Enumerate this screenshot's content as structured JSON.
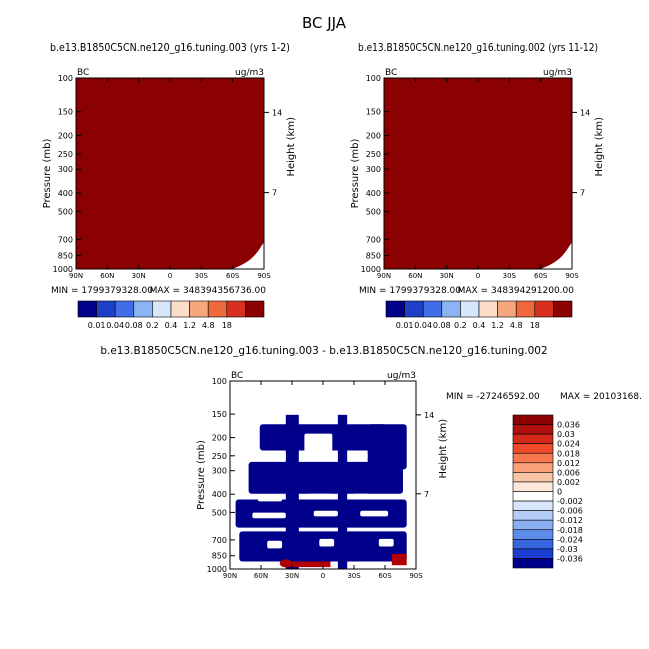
{
  "main_title": "BC  JJA",
  "colors": {
    "panel_fill": "#8B0000",
    "diff_negative": "#00008B",
    "diff_positive": "#B00000",
    "background": "#FFFFFF"
  },
  "chart_data": [
    {
      "type": "heatmap",
      "title": "b.e13.B1850C5CN.ne120_g16.tuning.003 (yrs 1-2)",
      "left_label": "BC",
      "right_label": "ug/m3",
      "ylabel": "Pressure (mb)",
      "ylabel_right": "Height (km)",
      "x_ticks": [
        "90N",
        "60N",
        "30N",
        "0",
        "30S",
        "60S",
        "90S"
      ],
      "y_ticks": [
        "100",
        "150",
        "200",
        "250",
        "300",
        "400",
        "500",
        "700",
        "850",
        "1000"
      ],
      "y_right_ticks": [
        "14",
        "7"
      ],
      "min_label": "MIN = 1799379328.00",
      "max_label": "MAX = 348394356736.00"
    },
    {
      "type": "heatmap",
      "title": "b.e13.B1850C5CN.ne120_g16.tuning.002 (yrs 11-12)",
      "left_label": "BC",
      "right_label": "ug/m3",
      "ylabel": "Pressure (mb)",
      "ylabel_right": "Height (km)",
      "x_ticks": [
        "90N",
        "60N",
        "30N",
        "0",
        "30S",
        "60S",
        "90S"
      ],
      "y_ticks": [
        "100",
        "150",
        "200",
        "250",
        "300",
        "400",
        "500",
        "700",
        "850",
        "1000"
      ],
      "y_right_ticks": [
        "14",
        "7"
      ],
      "min_label": "MIN = 1799379328.00",
      "max_label": "MAX = 348394291200.00"
    },
    {
      "type": "heatmap",
      "title": "b.e13.B1850C5CN.ne120_g16.tuning.003 - b.e13.B1850C5CN.ne120_g16.tuning.002",
      "left_label": "BC",
      "right_label": "ug/m3",
      "ylabel": "Pressure (mb)",
      "ylabel_right": "Height (km)",
      "x_ticks": [
        "90N",
        "60N",
        "30N",
        "0",
        "30S",
        "60S",
        "90S"
      ],
      "y_ticks": [
        "100",
        "150",
        "200",
        "250",
        "300",
        "400",
        "500",
        "700",
        "850",
        "1000"
      ],
      "y_right_ticks": [
        "14",
        "7"
      ],
      "min_label": "MIN = -27246592.00",
      "max_label": "MAX = 20103168."
    }
  ],
  "colorbar_top": {
    "labels": [
      "0.01",
      "0.04",
      "0.08",
      "0.2",
      "0.4",
      "1.2",
      "4.8",
      "18"
    ],
    "colors": [
      "#00008B",
      "#1E3FC8",
      "#3F6EE8",
      "#8CB4F5",
      "#D6E6FB",
      "#FBDDC8",
      "#F7A77D",
      "#EE6A3E",
      "#D7301F",
      "#8B0000"
    ]
  },
  "colorbar_diff": {
    "labels": [
      "0.036",
      "0.03",
      "0.024",
      "0.018",
      "0.012",
      "0.006",
      "0.002",
      "0",
      "-0.002",
      "-0.006",
      "-0.012",
      "-0.018",
      "-0.024",
      "-0.03",
      "-0.036"
    ],
    "colors": [
      "#8B0000",
      "#B01010",
      "#D42A1A",
      "#EE4A2A",
      "#F7774F",
      "#F9A07A",
      "#FBC6A8",
      "#FDE7D8",
      "#FFFFFF",
      "#D8E6FB",
      "#B4CCF8",
      "#8AAEF2",
      "#5E8CEB",
      "#3866E0",
      "#1B3ED0",
      "#00008B"
    ]
  }
}
